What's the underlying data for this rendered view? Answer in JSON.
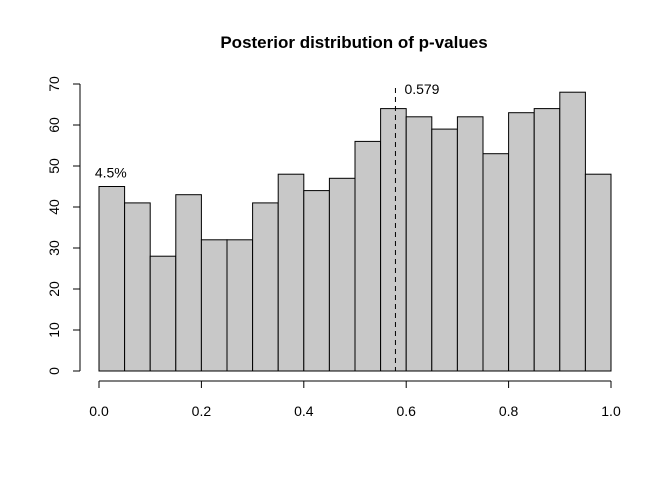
{
  "chart_data": {
    "type": "bar",
    "title": "Posterior distribution of p-values",
    "xlabel": "",
    "ylabel": "",
    "bin_edges": [
      0.0,
      0.05,
      0.1,
      0.15,
      0.2,
      0.25,
      0.3,
      0.35,
      0.4,
      0.45,
      0.5,
      0.55,
      0.6,
      0.65,
      0.7,
      0.75,
      0.8,
      0.85,
      0.9,
      0.95,
      1.0
    ],
    "values": [
      45,
      41,
      28,
      43,
      32,
      32,
      41,
      48,
      44,
      47,
      56,
      64,
      62,
      59,
      62,
      53,
      63,
      64,
      68,
      48
    ],
    "xlim": [
      0,
      1
    ],
    "ylim": [
      0,
      70
    ],
    "x_ticks": [
      "0.0",
      "0.2",
      "0.4",
      "0.6",
      "0.8",
      "1.0"
    ],
    "x_tick_values": [
      0,
      0.2,
      0.4,
      0.6,
      0.8,
      1.0
    ],
    "y_ticks": [
      "0",
      "10",
      "20",
      "30",
      "40",
      "50",
      "60",
      "70"
    ],
    "y_tick_values": [
      0,
      10,
      20,
      30,
      40,
      50,
      60,
      70
    ],
    "grid": false,
    "bar_color": "#c8c8c8",
    "annotations": [
      {
        "text": "4.5%",
        "x": 0.025,
        "y": 45
      },
      {
        "text": "0.579",
        "x": 0.579,
        "y": 70
      }
    ],
    "reference_line": {
      "x": 0.579,
      "style": "dashed"
    }
  }
}
